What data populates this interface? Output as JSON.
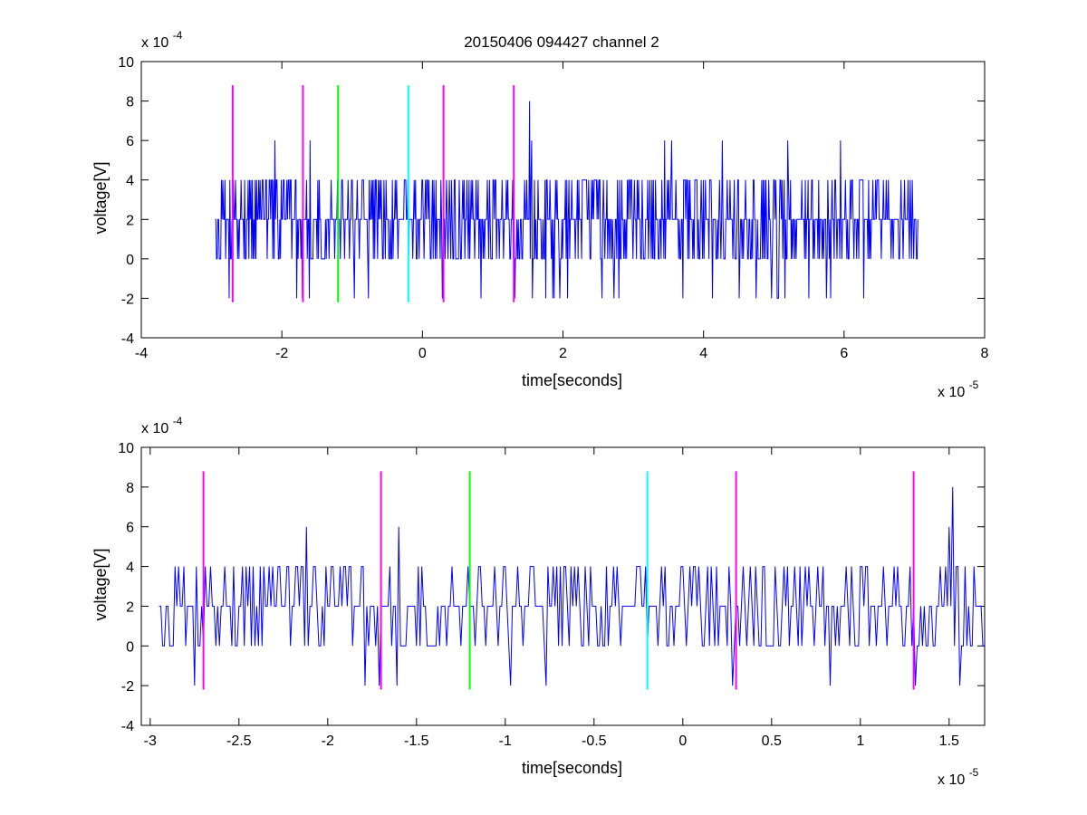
{
  "figure": {
    "title": "20150406 094427 channel 2"
  },
  "chart_data": [
    {
      "type": "line",
      "title": "20150406 094427 channel 2",
      "xlabel": "time[seconds]",
      "ylabel": "voltage[V]",
      "x_exponent_label": "x 10",
      "x_exponent": "-5",
      "y_exponent_label": "x 10",
      "y_exponent": "-4",
      "xlim": [
        -4,
        8
      ],
      "ylim": [
        -4,
        10
      ],
      "xticks": [
        -4,
        -2,
        0,
        2,
        4,
        6,
        8
      ],
      "xtick_labels": [
        "-4",
        "-2",
        "0",
        "2",
        "4",
        "6",
        "8"
      ],
      "yticks": [
        -4,
        -2,
        0,
        2,
        4,
        6,
        8,
        10
      ],
      "ytick_labels": [
        "-4",
        "-2",
        "0",
        "2",
        "4",
        "6",
        "8",
        "10"
      ],
      "grid": false,
      "series": [
        {
          "color": "#0000ff",
          "x_range": [
            -2.95,
            7.05
          ],
          "points": 1000,
          "levels": [
            -2,
            0,
            2,
            4,
            6,
            8
          ],
          "peaks": [
            {
              "x": -2.1,
              "y": 6
            },
            {
              "x": -1.6,
              "y": 6
            },
            {
              "x": 1.52,
              "y": 8
            },
            {
              "x": 3.45,
              "y": 6
            },
            {
              "x": 3.55,
              "y": 6
            },
            {
              "x": 4.27,
              "y": 6
            },
            {
              "x": 5.2,
              "y": 6
            },
            {
              "x": 5.95,
              "y": 6
            },
            {
              "x": 1.55,
              "y": 6
            }
          ]
        }
      ],
      "vertical_markers": [
        {
          "x": -2.7,
          "color": "#ff00ff",
          "y_range": [
            -2.2,
            8.8
          ]
        },
        {
          "x": -1.7,
          "color": "#ff00ff",
          "y_range": [
            -2.2,
            8.8
          ]
        },
        {
          "x": -1.2,
          "color": "#00ff00",
          "y_range": [
            -2.2,
            8.8
          ]
        },
        {
          "x": -0.2,
          "color": "#00ffff",
          "y_range": [
            -2.2,
            8.8
          ]
        },
        {
          "x": 0.3,
          "color": "#ff00ff",
          "y_range": [
            -2.2,
            8.8
          ]
        },
        {
          "x": 1.3,
          "color": "#ff00ff",
          "y_range": [
            -2.2,
            8.8
          ]
        }
      ]
    },
    {
      "type": "line",
      "title": "",
      "xlabel": "time[seconds]",
      "ylabel": "voltage[V]",
      "x_exponent_label": "x 10",
      "x_exponent": "-5",
      "y_exponent_label": "x 10",
      "y_exponent": "-4",
      "xlim": [
        -3.05,
        1.7
      ],
      "ylim": [
        -4,
        10
      ],
      "xticks": [
        -3,
        -2.5,
        -2,
        -1.5,
        -1,
        -0.5,
        0,
        0.5,
        1,
        1.5
      ],
      "xtick_labels": [
        "-3",
        "-2.5",
        "-2",
        "-1.5",
        "-1",
        "-0.5",
        "0",
        "0.5",
        "1",
        "1.5"
      ],
      "yticks": [
        -4,
        -2,
        0,
        2,
        4,
        6,
        8,
        10
      ],
      "ytick_labels": [
        "-4",
        "-2",
        "0",
        "2",
        "4",
        "6",
        "8",
        "10"
      ],
      "grid": false,
      "series": [
        {
          "color": "#0000ff",
          "x_range": [
            -2.95,
            1.7
          ],
          "points": 466,
          "levels": [
            -2,
            0,
            2,
            4,
            6,
            8
          ],
          "peaks": [
            {
              "x": -2.12,
              "y": 6
            },
            {
              "x": -1.6,
              "y": 6
            },
            {
              "x": 1.52,
              "y": 8
            },
            {
              "x": 1.5,
              "y": 6
            }
          ]
        }
      ],
      "vertical_markers": [
        {
          "x": -2.7,
          "color": "#ff00ff",
          "y_range": [
            -2.2,
            8.8
          ]
        },
        {
          "x": -1.7,
          "color": "#ff00ff",
          "y_range": [
            -2.2,
            8.8
          ]
        },
        {
          "x": -1.2,
          "color": "#00ff00",
          "y_range": [
            -2.2,
            8.8
          ]
        },
        {
          "x": -0.2,
          "color": "#00ffff",
          "y_range": [
            -2.2,
            8.8
          ]
        },
        {
          "x": 0.3,
          "color": "#ff00ff",
          "y_range": [
            -2.2,
            8.8
          ]
        },
        {
          "x": 1.3,
          "color": "#ff00ff",
          "y_range": [
            -2.2,
            8.8
          ]
        }
      ]
    }
  ]
}
